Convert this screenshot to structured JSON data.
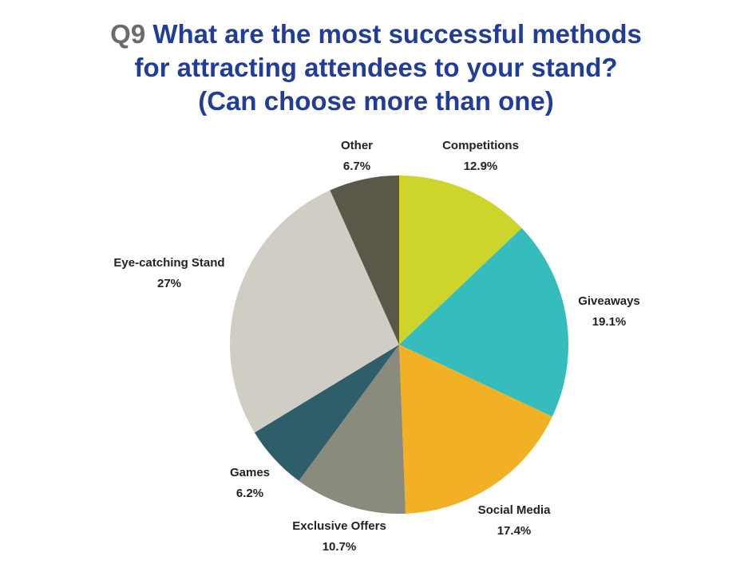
{
  "header": {
    "question_number": "Q9",
    "title_line1": "What are the most successful methods",
    "title_line2": "for attracting attendees to your stand?",
    "title_line3": "(Can choose more than one)"
  },
  "chart_data": {
    "type": "pie",
    "title": "Q9 What are the most successful methods for attracting attendees to your stand? (Can choose more than one)",
    "slices": [
      {
        "label": "Competitions",
        "value": 12.9,
        "value_label": "12.9%",
        "color": "#cdd52b"
      },
      {
        "label": "Giveaways",
        "value": 19.1,
        "value_label": "19.1%",
        "color": "#35bdbd"
      },
      {
        "label": "Social Media",
        "value": 17.4,
        "value_label": "17.4%",
        "color": "#f2b124"
      },
      {
        "label": "Exclusive Offers",
        "value": 10.7,
        "value_label": "10.7%",
        "color": "#8a8b7d"
      },
      {
        "label": "Games",
        "value": 6.2,
        "value_label": "6.2%",
        "color": "#2e5e6a"
      },
      {
        "label": "Eye-catching Stand",
        "value": 27,
        "value_label": "27%",
        "color": "#d0cec4"
      },
      {
        "label": "Other",
        "value": 6.7,
        "value_label": "6.7%",
        "color": "#5b5849"
      }
    ],
    "start": "top, clockwise",
    "legend": "none"
  }
}
